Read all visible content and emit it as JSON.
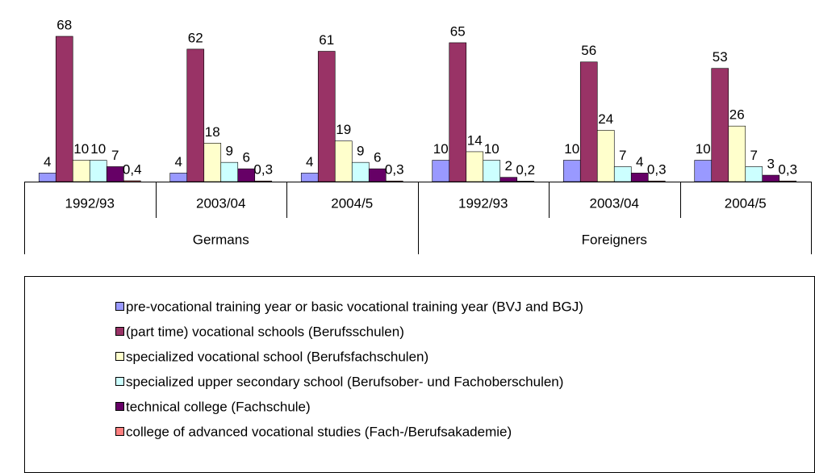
{
  "chart_data": {
    "type": "bar",
    "categories": [
      "1992/93",
      "2003/04",
      "2004/5",
      "1992/93",
      "2003/04",
      "2004/5"
    ],
    "category_groups": [
      "Germans",
      "Foreigners"
    ],
    "legend": "bottom",
    "series": [
      {
        "name": "pre-vocational training year or basic vocational training year (BVJ and BGJ)",
        "color": "#9999ff",
        "values": [
          4,
          4,
          4,
          10,
          10,
          10
        ],
        "value_labels": [
          "4",
          "4",
          "4",
          "10",
          "10",
          "10"
        ]
      },
      {
        "name": "(part time) vocational schools (Berufsschulen)",
        "color": "#993366",
        "values": [
          68,
          62,
          61,
          65,
          56,
          53
        ],
        "value_labels": [
          "68",
          "62",
          "61",
          "65",
          "56",
          "53"
        ]
      },
      {
        "name": "specialized vocational school (Berufsfachschulen)",
        "color": "#ffffcc",
        "values": [
          10,
          18,
          19,
          14,
          24,
          26
        ],
        "value_labels": [
          "10",
          "18",
          "19",
          "14",
          "24",
          "26"
        ]
      },
      {
        "name": "specialized upper secondary school (Berufsober- und Fachoberschulen)",
        "color": "#ccffff",
        "values": [
          10,
          9,
          9,
          10,
          7,
          7
        ],
        "value_labels": [
          "10",
          "9",
          "9",
          "10",
          "7",
          "7"
        ]
      },
      {
        "name": "technical college (Fachschule)",
        "color": "#660066",
        "values": [
          7,
          6,
          6,
          2,
          4,
          3
        ],
        "value_labels": [
          "7",
          "6",
          "6",
          "2",
          "4",
          "3"
        ]
      },
      {
        "name": "college of advanced vocational studies (Fach-/Berufsakademie)",
        "color": "#ff8080",
        "values": [
          0.4,
          0.3,
          0.3,
          0.2,
          0.3,
          0.3
        ],
        "value_labels": [
          "0,4",
          "0,3",
          "0,3",
          "0,2",
          "0,3",
          "0,3"
        ]
      }
    ]
  }
}
